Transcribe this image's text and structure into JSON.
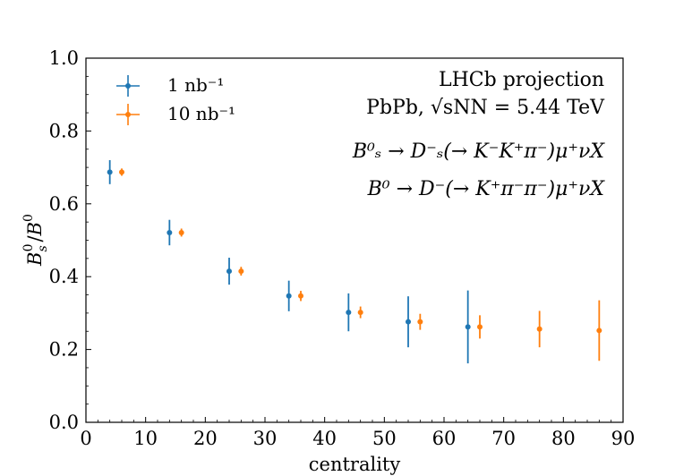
{
  "chart_data": {
    "type": "scatter",
    "xlabel": "centrality",
    "ylabel": "B⁰ₛ/B⁰",
    "xlim": [
      0,
      90
    ],
    "ylim": [
      0.0,
      1.0
    ],
    "xticks": [
      "0",
      "10",
      "20",
      "30",
      "40",
      "50",
      "60",
      "70",
      "80",
      "90"
    ],
    "yticks": [
      "0.0",
      "0.2",
      "0.4",
      "0.6",
      "0.8",
      "1.0"
    ],
    "grid": false,
    "legend_position": "top-left",
    "series": [
      {
        "name": "1 nb⁻¹",
        "color": "#1f77b4",
        "x": [
          4,
          14,
          24,
          34,
          44,
          54,
          64
        ],
        "y": [
          0.687,
          0.521,
          0.415,
          0.347,
          0.302,
          0.276,
          0.262
        ],
        "yerr": [
          0.033,
          0.035,
          0.037,
          0.042,
          0.052,
          0.07,
          0.1
        ]
      },
      {
        "name": "10 nb⁻¹",
        "color": "#ff7f0e",
        "x": [
          6,
          16,
          26,
          36,
          46,
          56,
          66,
          76,
          86
        ],
        "y": [
          0.687,
          0.521,
          0.415,
          0.347,
          0.302,
          0.276,
          0.262,
          0.256,
          0.252
        ],
        "yerr": [
          0.01,
          0.011,
          0.012,
          0.014,
          0.016,
          0.022,
          0.032,
          0.05,
          0.083
        ]
      }
    ],
    "annotations": {
      "line1": "LHCb projection",
      "line2": "PbPb, √sNN = 5.44 TeV",
      "line3": "B⁰ₛ → D⁻ₛ(→ K⁻K⁺π⁻)μ⁺νX",
      "line4": "B⁰ → D⁻(→ K⁺π⁻π⁻)μ⁺νX"
    }
  }
}
